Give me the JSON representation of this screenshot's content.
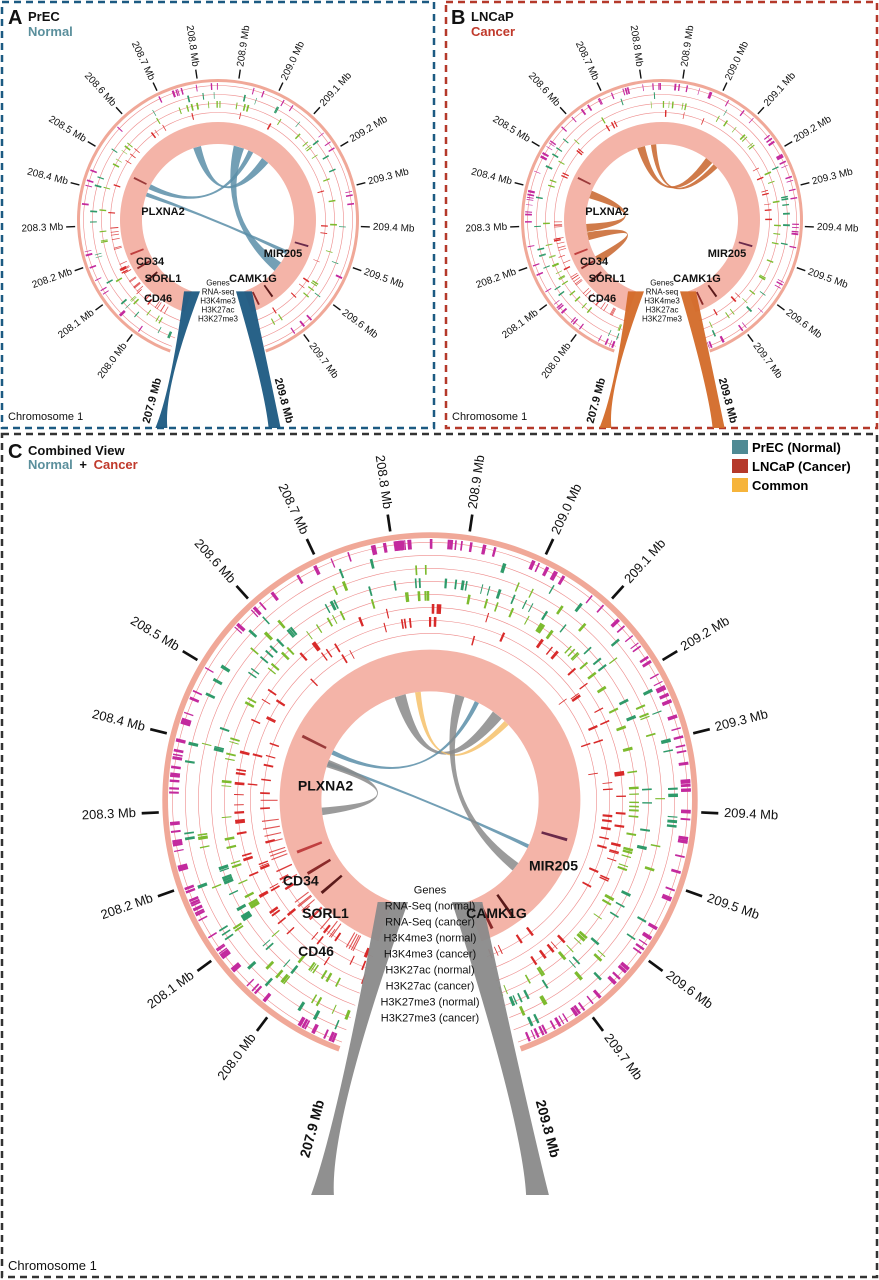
{
  "panels": {
    "A": {
      "letter": "A",
      "cell_line": "PrEC",
      "condition": "Normal",
      "chromosome": "Chromosome 1",
      "ticks": [
        "208.0 Mb",
        "208.1 Mb",
        "208.2 Mb",
        "208.3 Mb",
        "208.4 Mb",
        "208.5 Mb",
        "208.6 Mb",
        "208.7 Mb",
        "208.8 Mb",
        "208.9 Mb",
        "209.0 Mb",
        "209.1 Mb",
        "209.2 Mb",
        "209.3 Mb",
        "209.4 Mb",
        "209.5 Mb",
        "209.6 Mb",
        "209.7 Mb"
      ],
      "start_label": "207.9 Mb",
      "end_label": "209.8 Mb",
      "genes": [
        "PLXNA2",
        "CD34",
        "SORL1",
        "CD46",
        "CAMK1G",
        "MIR205"
      ],
      "tracks": [
        "Genes",
        "RNA-seq",
        "H3K4me3",
        "H3K27ac",
        "H3K27me3"
      ]
    },
    "B": {
      "letter": "B",
      "cell_line": "LNCaP",
      "condition": "Cancer",
      "chromosome": "Chromosome 1",
      "ticks": [
        "208.0 Mb",
        "208.1 Mb",
        "208.2 Mb",
        "208.3 Mb",
        "208.4 Mb",
        "208.5 Mb",
        "208.6 Mb",
        "208.7 Mb",
        "208.8 Mb",
        "208.9 Mb",
        "209.0 Mb",
        "209.1 Mb",
        "209.2 Mb",
        "209.3 Mb",
        "209.4 Mb",
        "209.5 Mb",
        "209.6 Mb",
        "209.7 Mb"
      ],
      "start_label": "207.9 Mb",
      "end_label": "209.8 Mb",
      "genes": [
        "PLXNA2",
        "CD34",
        "SORL1",
        "CD46",
        "CAMK1G",
        "MIR205"
      ],
      "tracks": [
        "Genes",
        "RNA-seq",
        "H3K4me3",
        "H3K27ac",
        "H3K27me3"
      ]
    },
    "C": {
      "letter": "C",
      "title": "Combined View",
      "normal_word": "Normal",
      "plus": "+",
      "cancer_word": "Cancer",
      "chromosome": "Chromosome 1",
      "ticks": [
        "208.0 Mb",
        "208.1 Mb",
        "208.2 Mb",
        "208.3 Mb",
        "208.4 Mb",
        "208.5 Mb",
        "208.6 Mb",
        "208.7 Mb",
        "208.8 Mb",
        "208.9 Mb",
        "209.0 Mb",
        "209.1 Mb",
        "209.2 Mb",
        "209.3 Mb",
        "209.4 Mb",
        "209.5 Mb",
        "209.6 Mb",
        "209.7 Mb"
      ],
      "start_label": "207.9 Mb",
      "end_label": "209.8 Mb",
      "genes": [
        "PLXNA2",
        "CD34",
        "SORL1",
        "CD46",
        "CAMK1G",
        "MIR205"
      ],
      "tracks": [
        "Genes",
        "RNA-Seq (normal)",
        "RNA-Seq (cancer)",
        "H3K4me3 (normal)",
        "H3K4me3 (cancer)",
        "H3K27ac (normal)",
        "H3K27ac (cancer)",
        "H3K27me3 (normal)",
        "H3K27me3 (cancer)"
      ]
    }
  },
  "legend": [
    {
      "label": "PrEC (Normal)",
      "color": "#4f8a94"
    },
    {
      "label": "LNCaP (Cancer)",
      "color": "#b5392a"
    },
    {
      "label": "Common",
      "color": "#f6b43b"
    }
  ],
  "colors": {
    "normal_frame": "#1c5a82",
    "cancer_frame": "#b5392a",
    "combined_frame": "#333333",
    "normal_text": "#5a8f9c",
    "cancer_text": "#c0392b",
    "link_normal": "#5b8ea8",
    "link_cancer": "#c8642a",
    "link_common": "#f6c16a",
    "link_gray": "#8a8a8a",
    "ideogram": "#f4b4a8",
    "track_magenta": "#c32a9e",
    "track_green": "#2f9a6a",
    "track_lime": "#7dbb2f",
    "track_red": "#d82a2a"
  }
}
